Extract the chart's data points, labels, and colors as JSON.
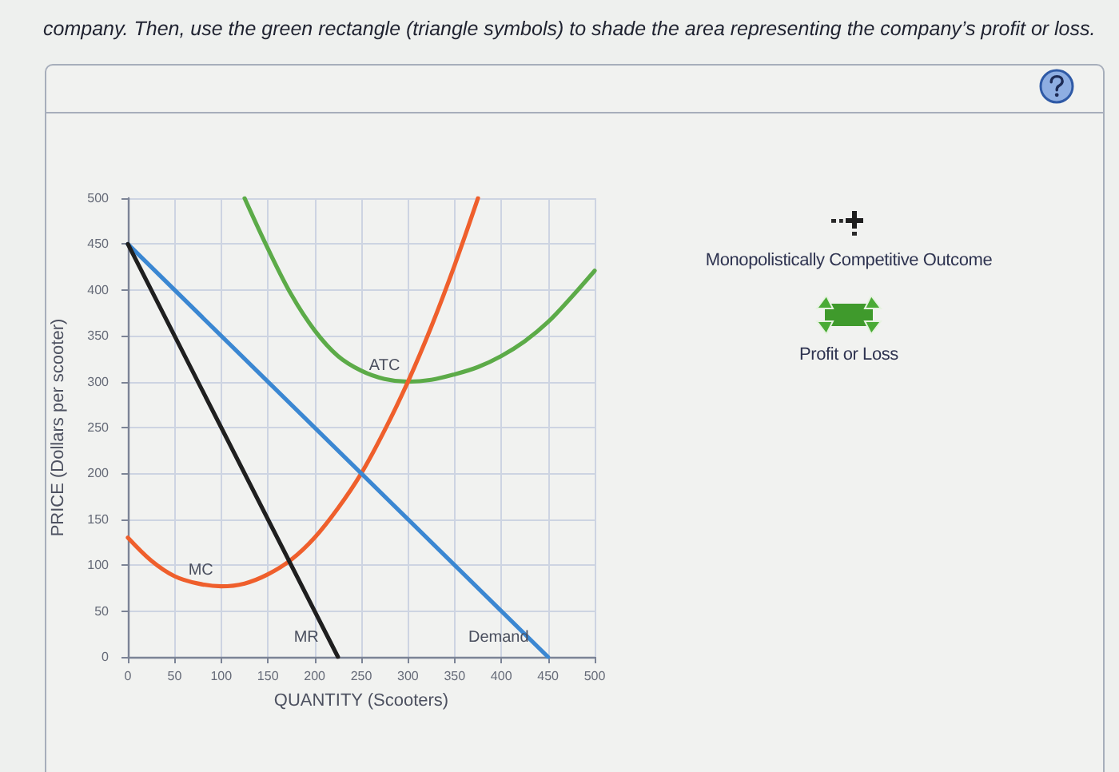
{
  "chart_data": {
    "type": "line",
    "title": "company. Then, use the green rectangle (triangle symbols) to shade the area representing the company’s profit or loss.",
    "xlabel": "QUANTITY (Scooters)",
    "ylabel": "PRICE (Dollars per scooter)",
    "annotations": [
      "Monopolistically Competitive Outcome",
      "Profit or Loss"
    ],
    "series": [
      {
        "name": "ATC",
        "color": "#5cab48",
        "x": [
          125,
          150,
          175,
          200,
          225,
          250,
          275,
          300,
          325,
          350,
          375,
          400,
          425,
          450,
          475,
          500
        ],
        "values": [
          500,
          445,
          395,
          356,
          328,
          312,
          303,
          300,
          302,
          308,
          316,
          328,
          344,
          365,
          392,
          421
        ]
      },
      {
        "name": "MC",
        "color": "#ef5f2c",
        "x": [
          0,
          25,
          50,
          75,
          100,
          125,
          150,
          175,
          200,
          225,
          250,
          275,
          300,
          325,
          350,
          375
        ],
        "values": [
          130,
          105,
          88,
          80,
          77,
          80,
          90,
          106,
          130,
          162,
          200,
          247,
          300,
          360,
          427,
          500
        ]
      },
      {
        "name": "Demand",
        "color": "#3b87d2",
        "x": [
          0,
          450
        ],
        "values": [
          450,
          0
        ]
      },
      {
        "name": "MR",
        "color": "#1f1f1f",
        "x": [
          0,
          225
        ],
        "values": [
          450,
          0
        ]
      }
    ],
    "xlim": [
      0,
      500
    ],
    "xticks": [
      0,
      50,
      100,
      150,
      200,
      250,
      300,
      350,
      400,
      450,
      500
    ],
    "ylim": [
      0,
      500
    ],
    "yticks": [
      0,
      50,
      100,
      150,
      200,
      250,
      300,
      350,
      400,
      450,
      500
    ],
    "grid": true
  }
}
